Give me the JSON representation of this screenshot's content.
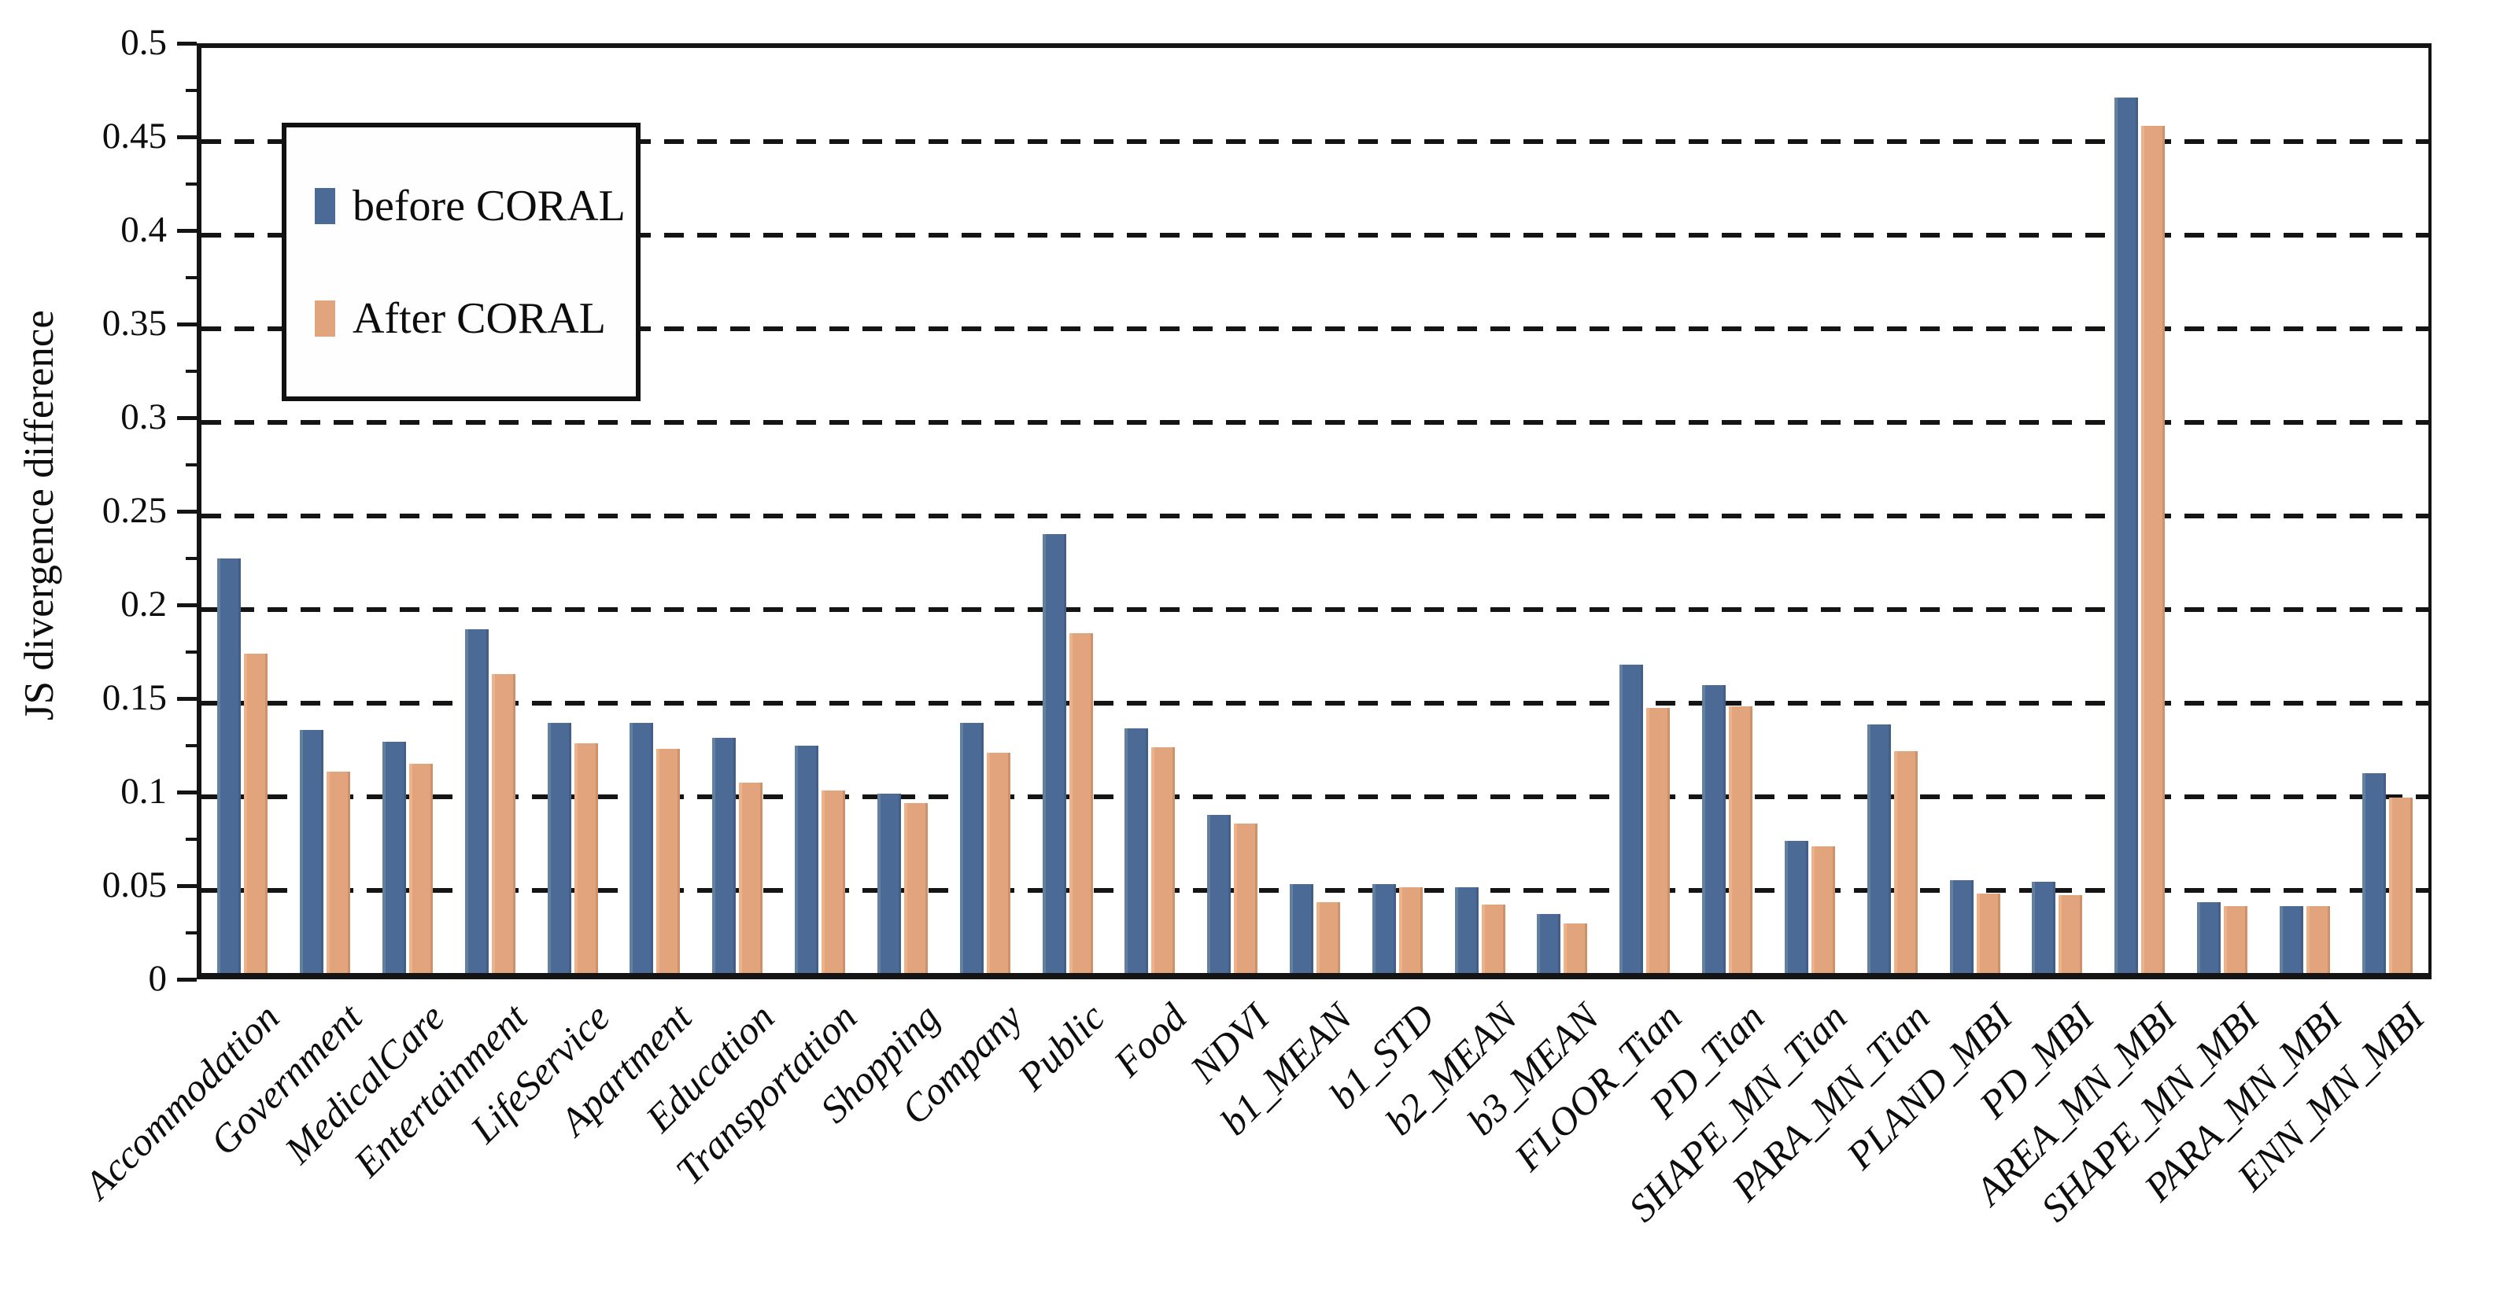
{
  "chart_data": {
    "type": "bar",
    "title": "",
    "xlabel": "",
    "ylabel": "JS divergence difference",
    "ylim": [
      0,
      0.5
    ],
    "ytick_step": 0.05,
    "ytick_minor_step": 0.025,
    "ytick_labels": [
      "0.5",
      "0.45",
      "0.4",
      "0.35",
      "0.3",
      "0.25",
      "0.2",
      "0.15",
      "0.1",
      "0.05",
      "0"
    ],
    "grid": "horizontal dashed, behind bars",
    "legend_position": "top-left inside plot",
    "categories": [
      "Accommodation",
      "Government",
      "MedicalCare",
      "Entertainment",
      "LifeService",
      "Apartment",
      "Education",
      "Transportation",
      "Shopping",
      "Company",
      "Public",
      "Food",
      "NDVI",
      "b1_MEAN",
      "b1_STD",
      "b2_MEAN",
      "b3_MEAN",
      "FLOOR_Tian",
      "PD_Tian",
      "SHAPE_MN_Tian",
      "PARA_MN_Tian",
      "PLAND_MBI",
      "PD_MBI",
      "AREA_MN_MBI",
      "SHAPE_MN_MBI",
      "PARA_MN_MBI",
      "ENN_MN_MBI"
    ],
    "series": [
      {
        "name": "before CORAL",
        "color": "#4c6a96",
        "values": [
          0.225,
          0.133,
          0.127,
          0.187,
          0.137,
          0.137,
          0.129,
          0.125,
          0.099,
          0.137,
          0.238,
          0.134,
          0.088,
          0.051,
          0.051,
          0.049,
          0.035,
          0.168,
          0.157,
          0.074,
          0.136,
          0.053,
          0.052,
          0.471,
          0.041,
          0.039,
          0.11
        ]
      },
      {
        "name": "After CORAL",
        "color": "#e2a47c",
        "values": [
          0.174,
          0.111,
          0.115,
          0.163,
          0.126,
          0.123,
          0.105,
          0.101,
          0.094,
          0.121,
          0.185,
          0.124,
          0.083,
          0.041,
          0.049,
          0.04,
          0.03,
          0.145,
          0.146,
          0.071,
          0.122,
          0.046,
          0.045,
          0.456,
          0.039,
          0.039,
          0.097
        ]
      }
    ]
  },
  "colors": {
    "axis": "#141414",
    "gridline": "#141414",
    "background": "#ffffff",
    "before_coral": "#4c6a96",
    "after_coral": "#e2a47c"
  }
}
